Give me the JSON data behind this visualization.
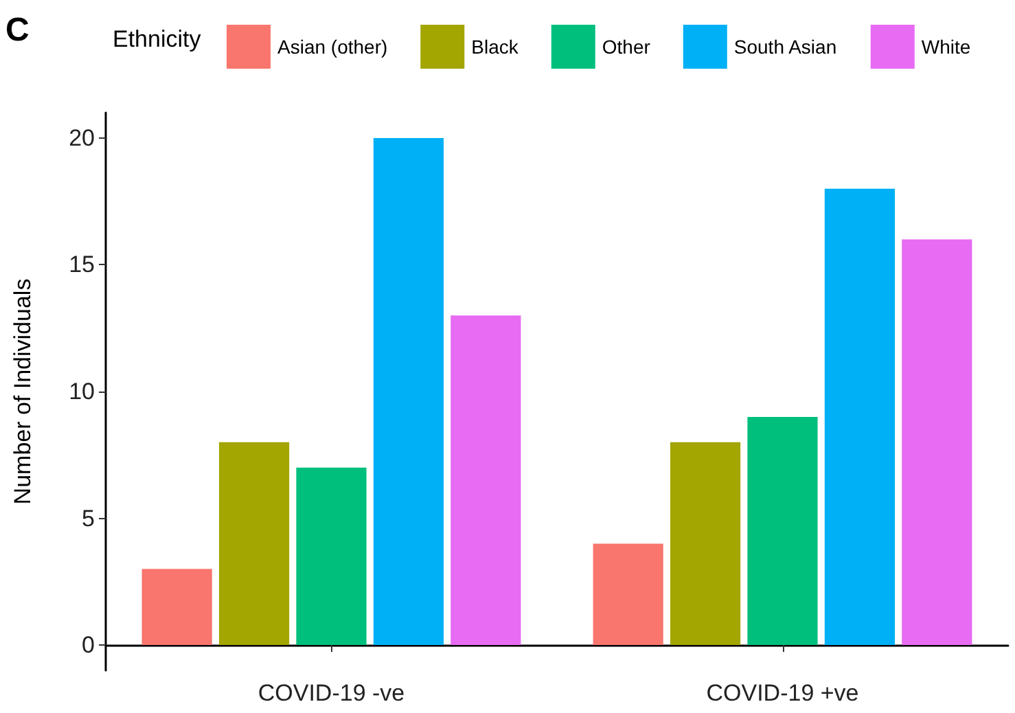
{
  "chart_data": {
    "type": "bar",
    "ylabel": "Number of Individuals",
    "legend_title": "Ethnicity",
    "annotations": [
      "C"
    ],
    "categories": [
      "COVID-19 -ve",
      "COVID-19 +ve"
    ],
    "series": [
      {
        "name": "Asian (other)",
        "color": "#f8766d",
        "values": [
          3,
          4
        ]
      },
      {
        "name": "Black",
        "color": "#a3a500",
        "values": [
          8,
          8
        ]
      },
      {
        "name": "Other",
        "color": "#00bf7d",
        "values": [
          7,
          9
        ]
      },
      {
        "name": "South Asian",
        "color": "#00b0f6",
        "values": [
          20,
          18
        ]
      },
      {
        "name": "White",
        "color": "#e76bf3",
        "values": [
          13,
          16
        ]
      }
    ],
    "ylim": [
      -1,
      21
    ],
    "yticks": [
      0,
      5,
      10,
      15,
      20
    ],
    "grid": false,
    "legend": "top"
  }
}
